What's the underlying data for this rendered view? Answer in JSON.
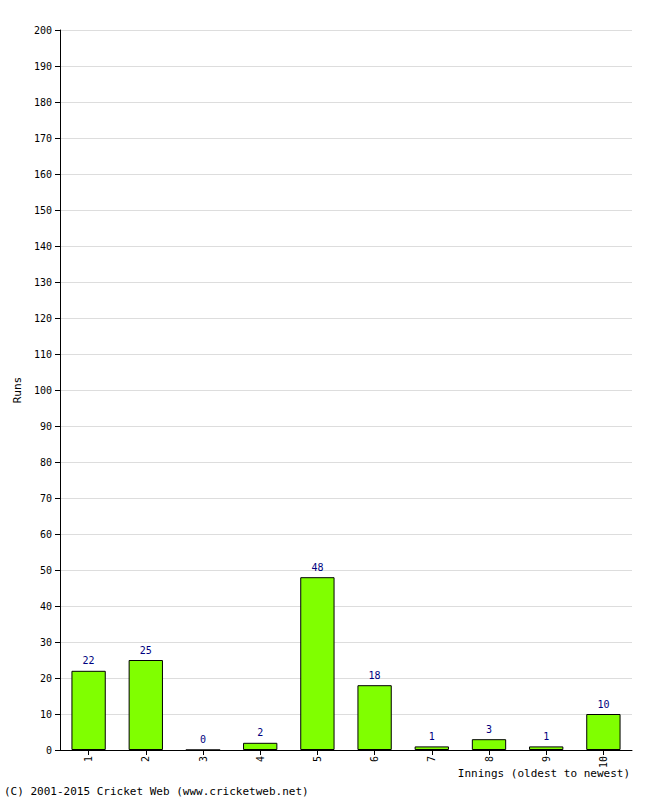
{
  "chart_data": {
    "type": "bar",
    "categories": [
      "1",
      "2",
      "3",
      "4",
      "5",
      "6",
      "7",
      "8",
      "9",
      "10"
    ],
    "values": [
      22,
      25,
      0,
      2,
      48,
      18,
      1,
      3,
      1,
      10
    ],
    "color": "#80ff00",
    "x_label": "Innings (oldest to newest)",
    "y_label": "Runs",
    "ylim": [
      0,
      200
    ],
    "yticks": [
      0,
      10,
      20,
      30,
      40,
      50,
      60,
      70,
      80,
      90,
      100,
      110,
      120,
      130,
      140,
      150,
      160,
      170,
      180,
      190,
      200
    ],
    "grid": true,
    "data_labels": true,
    "annotations": [
      "(C) 2001-2015 Cricket Web (www.cricketweb.net)"
    ]
  }
}
